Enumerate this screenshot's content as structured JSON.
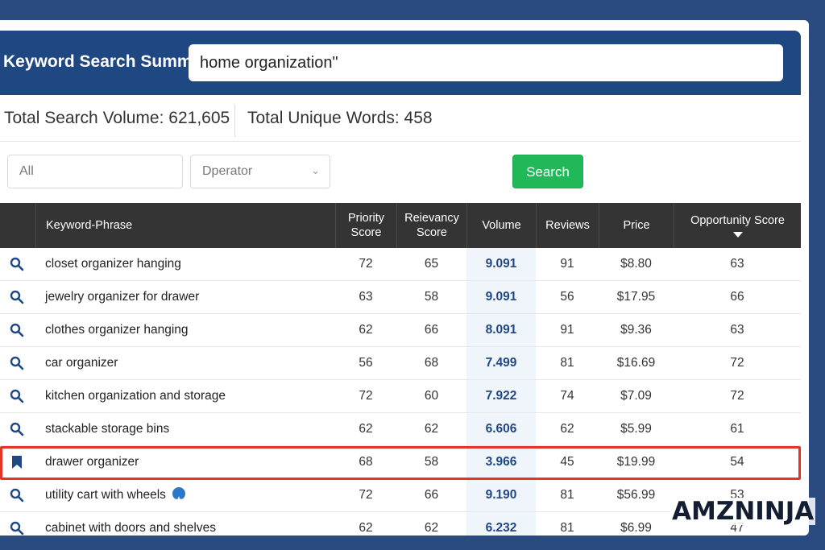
{
  "header": {
    "title": "Keyword Search Summ;",
    "search_value": "home organization\""
  },
  "summary": {
    "total_volume": "Total Search Volume: 621,605",
    "total_words": "Total Unique Words: 458"
  },
  "filters": {
    "field_value": "All",
    "operator_placeholder": "Dperator",
    "search_label": "Search"
  },
  "table": {
    "columns": {
      "keyword": "Keyword-Phrase",
      "priority": "Priority Score",
      "relevancy": "Reievancy Score",
      "volume": "Volume",
      "reviews": "Reviews",
      "price": "Price",
      "opportunity": "Opportunity Score"
    },
    "rows": [
      {
        "keyword": "closet organizer hanging",
        "priority": "72",
        "relevancy": "65",
        "volume": "9.091",
        "reviews": "91",
        "price": "$8.80",
        "opportunity": "63"
      },
      {
        "keyword": "jewelry organizer for drawer",
        "priority": "63",
        "relevancy": "58",
        "volume": "9.091",
        "reviews": "56",
        "price": "$17.95",
        "opportunity": "66"
      },
      {
        "keyword": "clothes organizer hanging",
        "priority": "62",
        "relevancy": "66",
        "volume": "8.091",
        "reviews": "91",
        "price": "$9.36",
        "opportunity": "63"
      },
      {
        "keyword": "car organizer",
        "priority": "56",
        "relevancy": "68",
        "volume": "7.499",
        "reviews": "81",
        "price": "$16.69",
        "opportunity": "72"
      },
      {
        "keyword": "kitchen organization and storage",
        "priority": "72",
        "relevancy": "60",
        "volume": "7.922",
        "reviews": "74",
        "price": "$7.09",
        "opportunity": "72"
      },
      {
        "keyword": "stackable storage bins",
        "priority": "62",
        "relevancy": "62",
        "volume": "6.606",
        "reviews": "62",
        "price": "$5.99",
        "opportunity": "61"
      },
      {
        "keyword": "drawer organizer",
        "priority": "68",
        "relevancy": "58",
        "volume": "3.966",
        "reviews": "45",
        "price": "$19.99",
        "opportunity": "54"
      },
      {
        "keyword": "utility cart with wheels",
        "priority": "72",
        "relevancy": "66",
        "volume": "9.190",
        "reviews": "81",
        "price": "$56.99",
        "opportunity": "53"
      },
      {
        "keyword": "cabinet with doors and shelves",
        "priority": "62",
        "relevancy": "62",
        "volume": "6.232",
        "reviews": "81",
        "price": "$6.99",
        "opportunity": "47"
      }
    ]
  },
  "brand": {
    "logo": "AMZNINJA"
  },
  "colors": {
    "header": "#1f4882",
    "accent_green": "#21b85a",
    "highlight_red": "#e53424"
  }
}
